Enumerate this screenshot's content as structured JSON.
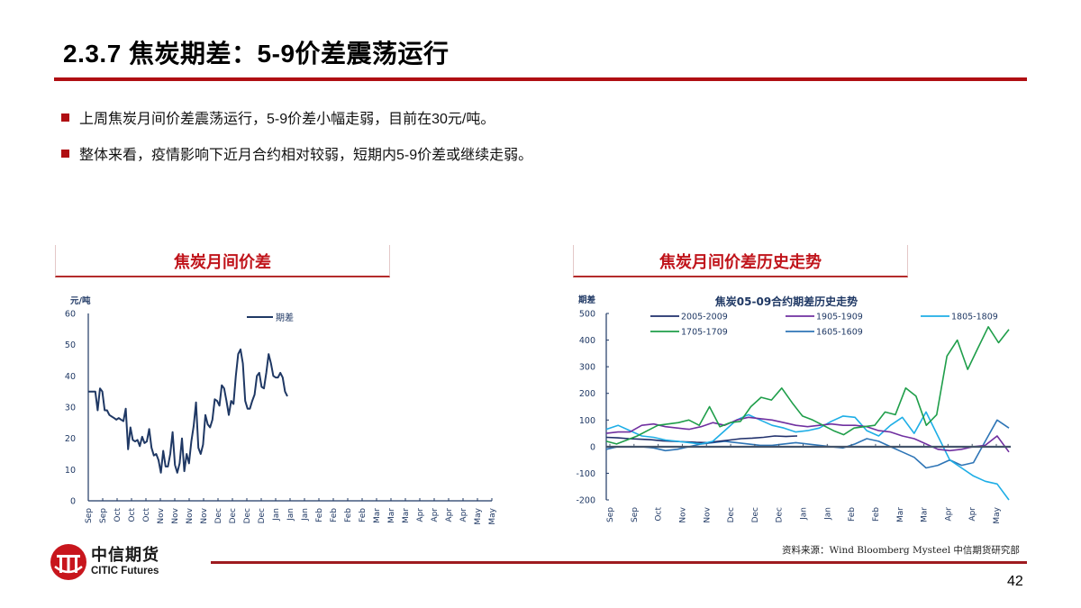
{
  "header": {
    "title": "2.3.7 焦炭期差：5-9价差震荡运行"
  },
  "bullets": [
    "上周焦炭月间价差震荡运行，5-9价差小幅走弱，目前在30元/吨。",
    "整体来看，疫情影响下近月合约相对较弱，短期内5-9价差或继续走弱。"
  ],
  "colors": {
    "brand_red": "#b00f13",
    "panel_title_red": "#c0141b",
    "axis_blue": "#1f3864"
  },
  "left_panel": {
    "title": "焦炭月间价差"
  },
  "right_panel": {
    "title": "焦炭月间价差历史走势"
  },
  "chart_data": [
    {
      "type": "line",
      "title": "",
      "ylabel": "元/吨",
      "xlabel": "",
      "ylim": [
        0,
        60
      ],
      "yticks": [
        0,
        10,
        20,
        30,
        40,
        50,
        60
      ],
      "grid": false,
      "legend_position": "top-right",
      "x_tick_labels": [
        "Sep",
        "Sep",
        "Oct",
        "Oct",
        "Oct",
        "Nov",
        "Nov",
        "Nov",
        "Nov",
        "Dec",
        "Dec",
        "Dec",
        "Dec",
        "Jan",
        "Jan",
        "Jan",
        "Feb",
        "Feb",
        "Feb",
        "Feb",
        "Mar",
        "Mar",
        "Mar",
        "Apr",
        "Apr",
        "Apr",
        "Apr",
        "May",
        "May"
      ],
      "series": [
        {
          "name": "期差",
          "color": "#1f3864",
          "values": [
            35,
            35,
            35,
            35,
            29,
            36,
            35,
            29,
            29,
            27.5,
            27,
            26.5,
            26,
            26.5,
            26,
            25.5,
            29.5,
            16.5,
            23.5,
            19.5,
            19,
            19.5,
            17.5,
            20.5,
            18.5,
            19,
            23,
            17,
            14.5,
            15,
            13,
            9,
            16,
            11,
            11,
            15,
            22,
            11.5,
            9,
            12,
            20,
            9.5,
            15,
            12,
            19,
            24,
            31.5,
            17,
            15,
            18,
            27.5,
            24.5,
            23.5,
            26,
            32.5,
            32,
            30.5,
            37,
            36,
            32,
            27.5,
            32,
            31,
            40,
            47,
            48.5,
            44,
            32,
            29.5,
            29.5,
            32,
            34,
            40,
            41,
            36.5,
            36,
            41,
            47,
            44,
            40,
            39.5,
            39.5,
            41,
            39.5,
            35,
            33.5
          ]
        }
      ]
    },
    {
      "type": "line",
      "title": "焦炭05-09合约期差历史走势",
      "ylabel": "期差",
      "xlabel": "",
      "ylim": [
        -200,
        500
      ],
      "yticks": [
        -200,
        -100,
        0,
        100,
        200,
        300,
        400,
        500
      ],
      "grid": false,
      "legend_position": "top",
      "x_tick_labels": [
        "Sep",
        "Sep",
        "Oct",
        "Nov",
        "Nov",
        "Dec",
        "Dec",
        "Dec",
        "Jan",
        "Jan",
        "Feb",
        "Feb",
        "Mar",
        "Mar",
        "Apr",
        "Apr",
        "May"
      ],
      "series": [
        {
          "name": "2005-2009",
          "color": "#1f2f6b",
          "values": [
            35,
            33,
            30,
            28,
            26,
            22,
            20,
            18,
            16,
            15,
            20,
            25,
            30,
            32,
            35,
            40,
            38,
            40
          ]
        },
        {
          "name": "1905-1909",
          "color": "#7030a0",
          "values": [
            50,
            55,
            55,
            80,
            85,
            75,
            70,
            65,
            75,
            90,
            80,
            100,
            110,
            105,
            100,
            90,
            80,
            75,
            80,
            85,
            80,
            80,
            75,
            60,
            55,
            40,
            30,
            10,
            -10,
            -15,
            -10,
            0,
            5,
            40,
            -20
          ]
        },
        {
          "name": "1805-1809",
          "color": "#1eaee6",
          "values": [
            65,
            80,
            60,
            40,
            35,
            25,
            20,
            15,
            10,
            20,
            60,
            100,
            120,
            100,
            80,
            70,
            55,
            60,
            70,
            95,
            115,
            110,
            60,
            40,
            80,
            110,
            50,
            130,
            40,
            -50,
            -80,
            -110,
            -130,
            -140,
            -200
          ]
        },
        {
          "name": "1705-1709",
          "color": "#1f9e4a",
          "values": [
            20,
            10,
            25,
            40,
            60,
            80,
            85,
            90,
            100,
            80,
            150,
            75,
            90,
            95,
            150,
            185,
            175,
            220,
            165,
            115,
            100,
            80,
            60,
            45,
            70,
            75,
            80,
            130,
            120,
            220,
            190,
            80,
            120,
            340,
            400,
            290,
            370,
            450,
            390,
            440
          ]
        },
        {
          "name": "1605-1609",
          "color": "#2e75b6",
          "values": [
            -10,
            0,
            0,
            0,
            -5,
            -15,
            -10,
            0,
            10,
            15,
            20,
            15,
            10,
            5,
            5,
            10,
            15,
            10,
            5,
            0,
            -5,
            10,
            30,
            20,
            0,
            -20,
            -40,
            -80,
            -70,
            -50,
            -70,
            -60,
            20,
            100,
            70
          ]
        }
      ]
    }
  ],
  "left_chart": {
    "unit_label": "元/吨",
    "legend_label": "期差",
    "yticks": [
      "60",
      "50",
      "40",
      "30",
      "20",
      "10",
      "0"
    ]
  },
  "right_chart": {
    "title": "焦炭05-09合约期差历史走势",
    "unit_label": "期差",
    "yticks": [
      "500",
      "400",
      "300",
      "200",
      "100",
      "0",
      "-100",
      "-200"
    ],
    "legend": [
      "2005-2009",
      "1905-1909",
      "1805-1809",
      "1705-1709",
      "1605-1609"
    ]
  },
  "footer": {
    "source": "资料来源：Wind Bloomberg Mysteel 中信期货研究部",
    "logo_cn": "中信期货",
    "logo_en": "CITIC Futures",
    "page_number": "42"
  }
}
